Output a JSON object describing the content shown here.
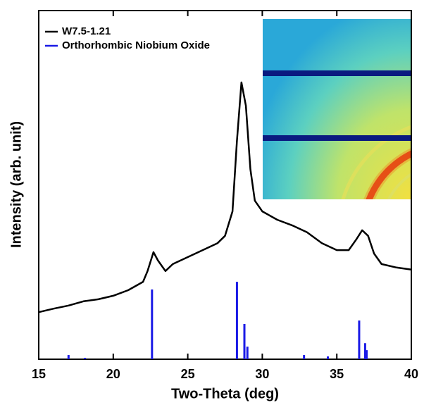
{
  "chart_data": {
    "type": "line",
    "xlabel": "Two-Theta (deg)",
    "ylabel": "Intensity (arb. unit)",
    "xlim": [
      15,
      40
    ],
    "xticks": [
      15,
      20,
      25,
      30,
      35,
      40
    ],
    "ylim": [
      0,
      100
    ],
    "legend": "upper left",
    "series": [
      {
        "name": "W7.5-1.21",
        "color": "#000000",
        "type": "line",
        "x": [
          15,
          16,
          17,
          18,
          19,
          20,
          21,
          22,
          22.3,
          22.7,
          23.0,
          23.5,
          24,
          25,
          26,
          27,
          27.5,
          28,
          28.3,
          28.6,
          28.9,
          29.2,
          29.5,
          30,
          31,
          32,
          33,
          34,
          35,
          35.8,
          36.3,
          36.7,
          37.1,
          37.5,
          38,
          39,
          40
        ],
        "values": [
          13.5,
          14.5,
          15.4,
          16.6,
          17.2,
          18.2,
          19.8,
          22.2,
          25.3,
          30.7,
          28.3,
          25.3,
          27.3,
          29.3,
          31.3,
          33.3,
          35.4,
          42.4,
          62.6,
          79.4,
          72.7,
          54.5,
          45.5,
          42.4,
          40,
          38.4,
          36.4,
          33.3,
          31.3,
          31.3,
          34.3,
          37,
          35.4,
          30.3,
          27.3,
          26.3,
          25.7
        ]
      },
      {
        "name": "Orthorhombic Niobium Oxide",
        "color": "#1a1ae6",
        "type": "stick",
        "x": [
          17.0,
          18.1,
          22.6,
          28.3,
          28.8,
          29.0,
          32.8,
          34.4,
          36.5,
          36.9,
          37.0
        ],
        "values": [
          1.2,
          0.4,
          20,
          22.2,
          10.1,
          3.6,
          1.2,
          0.8,
          11.1,
          4.6,
          2.6
        ]
      }
    ]
  }
}
